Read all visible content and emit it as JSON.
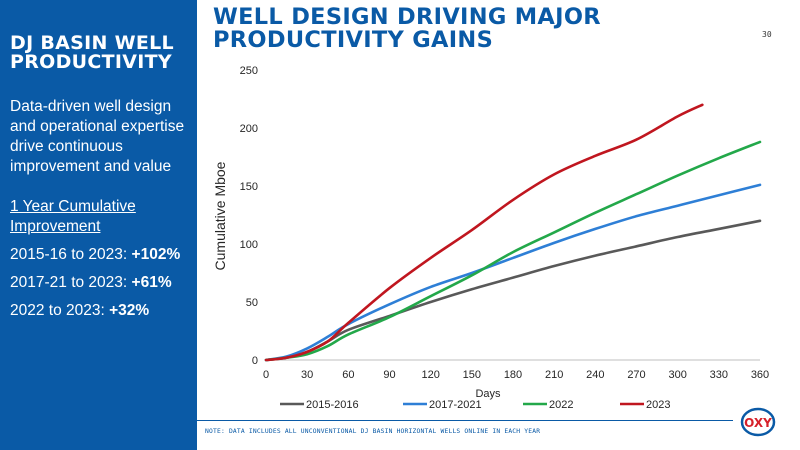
{
  "sidebar": {
    "title": "DJ BASIN WELL\nPRODUCTIVITY",
    "intro": "Data-driven well design and operational expertise drive continuous improvement and value",
    "subhead": "1 Year Cumulative Improvement",
    "stats": [
      {
        "label": "2015-16 to 2023: ",
        "value": "+102%"
      },
      {
        "label": "2017-21 to 2023: ",
        "value": "+61%"
      },
      {
        "label": "2022 to 2023: ",
        "value": "+32%"
      }
    ]
  },
  "header": {
    "title": "WELL DESIGN DRIVING MAJOR\nPRODUCTIVITY GAINS",
    "page_number": "30"
  },
  "footer": {
    "note": "NOTE: DATA INCLUDES ALL UNCONVENTIONAL DJ BASIN HORIZONTAL WELLS ONLINE IN EACH YEAR",
    "logo_text": "OXY"
  },
  "colors": {
    "brand_blue": "#0a5aa6",
    "logo_red": "#d6202a"
  },
  "chart_data": {
    "type": "line",
    "xlabel": "Days",
    "ylabel": "Cumulative Mboe",
    "xlim": [
      0,
      360
    ],
    "ylim": [
      0,
      250
    ],
    "xticks": [
      0,
      30,
      60,
      90,
      120,
      150,
      180,
      210,
      240,
      270,
      300,
      330,
      360
    ],
    "yticks": [
      0,
      50,
      100,
      150,
      200,
      250
    ],
    "grid": false,
    "legend": "bottom",
    "series": [
      {
        "name": "2015-2016",
        "color": "#595959",
        "x": [
          0,
          15,
          30,
          45,
          60,
          90,
          120,
          150,
          180,
          210,
          240,
          270,
          300,
          330,
          360
        ],
        "y": [
          0,
          2,
          7,
          16,
          26,
          38,
          50,
          61,
          71,
          81,
          90,
          98,
          106,
          113,
          120
        ]
      },
      {
        "name": "2017-2021",
        "color": "#2e7fd6",
        "x": [
          0,
          15,
          30,
          45,
          60,
          90,
          120,
          150,
          180,
          210,
          240,
          270,
          300,
          330,
          360
        ],
        "y": [
          0,
          3,
          10,
          20,
          31,
          48,
          63,
          75,
          88,
          101,
          113,
          124,
          133,
          142,
          151
        ]
      },
      {
        "name": "2022",
        "color": "#23a84a",
        "x": [
          0,
          15,
          30,
          45,
          60,
          90,
          120,
          150,
          180,
          210,
          240,
          270,
          300,
          330,
          360
        ],
        "y": [
          0,
          2,
          5,
          12,
          22,
          37,
          55,
          73,
          93,
          110,
          127,
          143,
          159,
          174,
          188
        ]
      },
      {
        "name": "2023",
        "color": "#c0161f",
        "x": [
          0,
          15,
          30,
          45,
          60,
          90,
          120,
          150,
          180,
          210,
          240,
          270,
          300,
          318
        ],
        "y": [
          0,
          2,
          7,
          16,
          32,
          62,
          88,
          112,
          138,
          160,
          176,
          190,
          210,
          220
        ]
      }
    ]
  }
}
